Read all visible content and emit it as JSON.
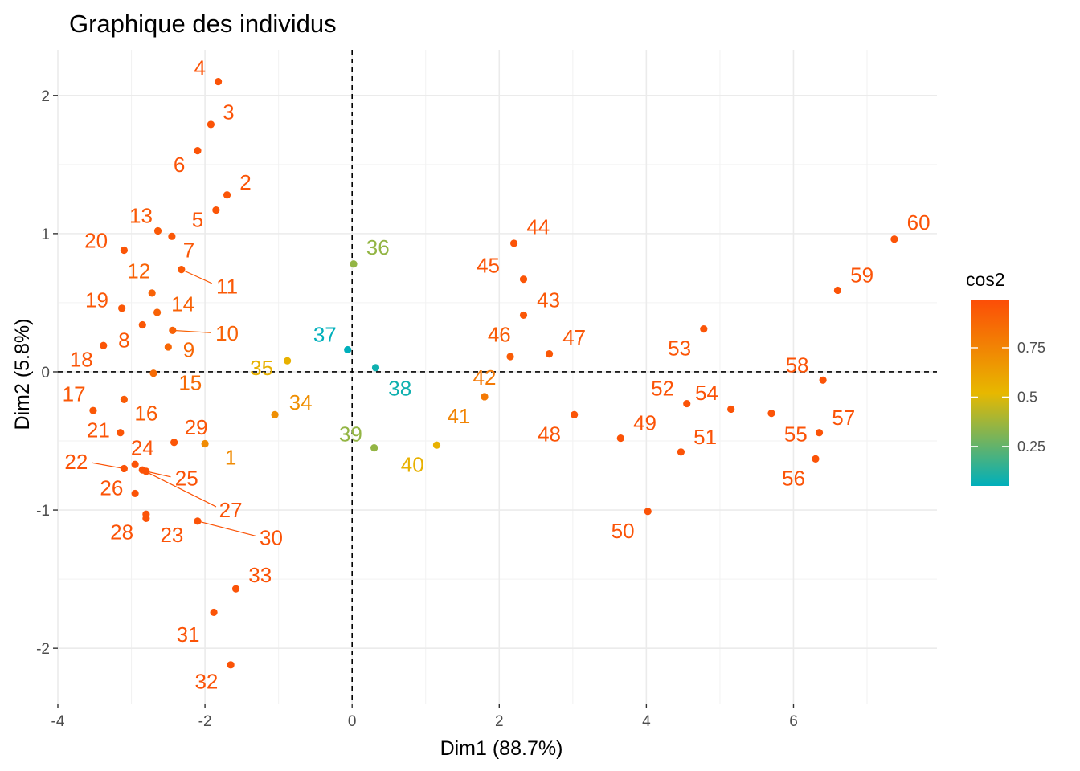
{
  "chart_data": {
    "type": "scatter",
    "title": "Graphique des individus",
    "xlabel": "Dim1 (88.7%)",
    "ylabel": "Dim2 (5.8%)",
    "xlim": [
      -4.0,
      7.95
    ],
    "ylim": [
      -2.4,
      2.33
    ],
    "xticks": [
      -4,
      -2,
      0,
      2,
      4,
      6
    ],
    "yticks": [
      -2,
      -1,
      0,
      1,
      2
    ],
    "grid": true,
    "reference_lines": {
      "x": 0,
      "y": 0,
      "style": "dashed"
    },
    "color_scale": {
      "name": "cos2",
      "ticks": [
        0.25,
        0.5,
        0.75
      ],
      "range": [
        0.05,
        0.99
      ],
      "colors": [
        "#00AFBB",
        "#E7B800",
        "#FC4E07"
      ],
      "legend_position": "right"
    },
    "points": [
      {
        "label": "1",
        "x": -2.0,
        "y": -0.52,
        "cos2": 0.72,
        "lx": -1.65,
        "ly": -0.62
      },
      {
        "label": "2",
        "x": -1.7,
        "y": 1.28,
        "cos2": 0.96,
        "lx": -1.45,
        "ly": 1.37
      },
      {
        "label": "3",
        "x": -1.92,
        "y": 1.79,
        "cos2": 0.97,
        "lx": -1.68,
        "ly": 1.88
      },
      {
        "label": "4",
        "x": -1.82,
        "y": 2.1,
        "cos2": 0.97,
        "lx": -2.07,
        "ly": 2.2
      },
      {
        "label": "5",
        "x": -1.85,
        "y": 1.17,
        "cos2": 0.96,
        "lx": -2.1,
        "ly": 1.1
      },
      {
        "label": "6",
        "x": -2.1,
        "y": 1.6,
        "cos2": 0.97,
        "lx": -2.35,
        "ly": 1.5
      },
      {
        "label": "7",
        "x": -2.45,
        "y": 0.98,
        "cos2": 0.95,
        "lx": -2.22,
        "ly": 0.88
      },
      {
        "label": "8",
        "x": -2.85,
        "y": 0.34,
        "cos2": 0.95,
        "lx": -3.1,
        "ly": 0.23
      },
      {
        "label": "9",
        "x": -2.5,
        "y": 0.18,
        "cos2": 0.88,
        "lx": -2.22,
        "ly": 0.16
      },
      {
        "label": "10",
        "x": -2.44,
        "y": 0.3,
        "cos2": 0.9,
        "lx": -1.7,
        "ly": 0.28,
        "seg": true
      },
      {
        "label": "11",
        "x": -2.32,
        "y": 0.74,
        "cos2": 0.94,
        "lx": -1.7,
        "ly": 0.62,
        "seg": true
      },
      {
        "label": "12",
        "x": -2.72,
        "y": 0.57,
        "cos2": 0.9,
        "lx": -2.9,
        "ly": 0.73
      },
      {
        "label": "13",
        "x": -2.64,
        "y": 1.02,
        "cos2": 0.94,
        "lx": -2.87,
        "ly": 1.13
      },
      {
        "label": "14",
        "x": -2.65,
        "y": 0.43,
        "cos2": 0.9,
        "lx": -2.3,
        "ly": 0.49
      },
      {
        "label": "15",
        "x": -2.7,
        "y": -0.01,
        "cos2": 0.86,
        "lx": -2.2,
        "ly": -0.08
      },
      {
        "label": "16",
        "x": -3.1,
        "y": -0.2,
        "cos2": 0.93,
        "lx": -2.8,
        "ly": -0.3
      },
      {
        "label": "17",
        "x": -3.52,
        "y": -0.28,
        "cos2": 0.95,
        "lx": -3.78,
        "ly": -0.16
      },
      {
        "label": "18",
        "x": -3.38,
        "y": 0.19,
        "cos2": 0.96,
        "lx": -3.68,
        "ly": 0.09
      },
      {
        "label": "19",
        "x": -3.13,
        "y": 0.46,
        "cos2": 0.95,
        "lx": -3.47,
        "ly": 0.52
      },
      {
        "label": "20",
        "x": -3.1,
        "y": 0.88,
        "cos2": 0.96,
        "lx": -3.48,
        "ly": 0.95
      },
      {
        "label": "21",
        "x": -3.15,
        "y": -0.44,
        "cos2": 0.96,
        "lx": -3.45,
        "ly": -0.42
      },
      {
        "label": "22",
        "x": -3.1,
        "y": -0.7,
        "cos2": 0.97,
        "lx": -3.75,
        "ly": -0.65,
        "seg": true
      },
      {
        "label": "23",
        "x": -2.8,
        "y": -1.06,
        "cos2": 0.97,
        "lx": -2.45,
        "ly": -1.18
      },
      {
        "label": "24",
        "x": -2.95,
        "y": -0.67,
        "cos2": 0.97,
        "lx": -2.85,
        "ly": -0.55
      },
      {
        "label": "25",
        "x": -2.8,
        "y": -0.72,
        "cos2": 0.97,
        "lx": -2.25,
        "ly": -0.77,
        "seg": true
      },
      {
        "label": "26",
        "x": -2.95,
        "y": -0.88,
        "cos2": 0.97,
        "lx": -3.27,
        "ly": -0.84
      },
      {
        "label": "27",
        "x": -2.85,
        "y": -0.71,
        "cos2": 0.97,
        "lx": -1.65,
        "ly": -1.0,
        "seg": true
      },
      {
        "label": "28",
        "x": -2.8,
        "y": -1.03,
        "cos2": 0.97,
        "lx": -3.13,
        "ly": -1.16
      },
      {
        "label": "29",
        "x": -2.42,
        "y": -0.51,
        "cos2": 0.96,
        "lx": -2.12,
        "ly": -0.4
      },
      {
        "label": "30",
        "x": -2.1,
        "y": -1.08,
        "cos2": 0.97,
        "lx": -1.1,
        "ly": -1.2,
        "seg": true
      },
      {
        "label": "31",
        "x": -1.88,
        "y": -1.74,
        "cos2": 0.97,
        "lx": -2.23,
        "ly": -1.9
      },
      {
        "label": "32",
        "x": -1.65,
        "y": -2.12,
        "cos2": 0.97,
        "lx": -1.98,
        "ly": -2.24
      },
      {
        "label": "33",
        "x": -1.58,
        "y": -1.57,
        "cos2": 0.97,
        "lx": -1.25,
        "ly": -1.47
      },
      {
        "label": "34",
        "x": -1.05,
        "y": -0.31,
        "cos2": 0.7,
        "lx": -0.7,
        "ly": -0.22
      },
      {
        "label": "35",
        "x": -0.88,
        "y": 0.08,
        "cos2": 0.55,
        "lx": -1.23,
        "ly": 0.03
      },
      {
        "label": "36",
        "x": 0.02,
        "y": 0.78,
        "cos2": 0.35,
        "lx": 0.35,
        "ly": 0.9
      },
      {
        "label": "37",
        "x": -0.06,
        "y": 0.16,
        "cos2": 0.05,
        "lx": -0.37,
        "ly": 0.27
      },
      {
        "label": "38",
        "x": 0.32,
        "y": 0.03,
        "cos2": 0.08,
        "lx": 0.65,
        "ly": -0.12
      },
      {
        "label": "39",
        "x": 0.3,
        "y": -0.55,
        "cos2": 0.35,
        "lx": -0.02,
        "ly": -0.45
      },
      {
        "label": "40",
        "x": 1.15,
        "y": -0.53,
        "cos2": 0.55,
        "lx": 0.82,
        "ly": -0.67
      },
      {
        "label": "41",
        "x": 1.8,
        "y": -0.18,
        "cos2": 0.75,
        "lx": 1.45,
        "ly": -0.32
      },
      {
        "label": "42",
        "x": 1.8,
        "y": -0.18,
        "cos2": 0.8,
        "lx": 1.8,
        "ly": -0.04
      },
      {
        "label": "43",
        "x": 2.33,
        "y": 0.41,
        "cos2": 0.95,
        "lx": 2.67,
        "ly": 0.52
      },
      {
        "label": "44",
        "x": 2.2,
        "y": 0.93,
        "cos2": 0.97,
        "lx": 2.53,
        "ly": 1.05
      },
      {
        "label": "45",
        "x": 2.33,
        "y": 0.67,
        "cos2": 0.96,
        "lx": 1.85,
        "ly": 0.77
      },
      {
        "label": "46",
        "x": 2.15,
        "y": 0.11,
        "cos2": 0.93,
        "lx": 2.0,
        "ly": 0.27
      },
      {
        "label": "47",
        "x": 2.68,
        "y": 0.13,
        "cos2": 0.95,
        "lx": 3.02,
        "ly": 0.25
      },
      {
        "label": "48",
        "x": 3.02,
        "y": -0.31,
        "cos2": 0.96,
        "lx": 2.68,
        "ly": -0.45
      },
      {
        "label": "49",
        "x": 3.65,
        "y": -0.48,
        "cos2": 0.97,
        "lx": 3.98,
        "ly": -0.37
      },
      {
        "label": "50",
        "x": 4.02,
        "y": -1.01,
        "cos2": 0.97,
        "lx": 3.68,
        "ly": -1.15
      },
      {
        "label": "51",
        "x": 4.47,
        "y": -0.58,
        "cos2": 0.97,
        "lx": 4.8,
        "ly": -0.47
      },
      {
        "label": "52",
        "x": 4.55,
        "y": -0.23,
        "cos2": 0.97,
        "lx": 4.22,
        "ly": -0.12
      },
      {
        "label": "53",
        "x": 4.78,
        "y": 0.31,
        "cos2": 0.96,
        "lx": 4.45,
        "ly": 0.17
      },
      {
        "label": "54",
        "x": 5.15,
        "y": -0.27,
        "cos2": 0.97,
        "lx": 4.82,
        "ly": -0.15
      },
      {
        "label": "55",
        "x": 5.7,
        "y": -0.3,
        "cos2": 0.97,
        "lx": 6.03,
        "ly": -0.45
      },
      {
        "label": "56",
        "x": 6.3,
        "y": -0.63,
        "cos2": 0.97,
        "lx": 6.0,
        "ly": -0.77
      },
      {
        "label": "57",
        "x": 6.35,
        "y": -0.44,
        "cos2": 0.97,
        "lx": 6.68,
        "ly": -0.33
      },
      {
        "label": "58",
        "x": 6.4,
        "y": -0.06,
        "cos2": 0.97,
        "lx": 6.05,
        "ly": 0.05
      },
      {
        "label": "59",
        "x": 6.6,
        "y": 0.59,
        "cos2": 0.97,
        "lx": 6.93,
        "ly": 0.7
      },
      {
        "label": "60",
        "x": 7.37,
        "y": 0.96,
        "cos2": 0.97,
        "lx": 7.7,
        "ly": 1.08
      }
    ]
  }
}
